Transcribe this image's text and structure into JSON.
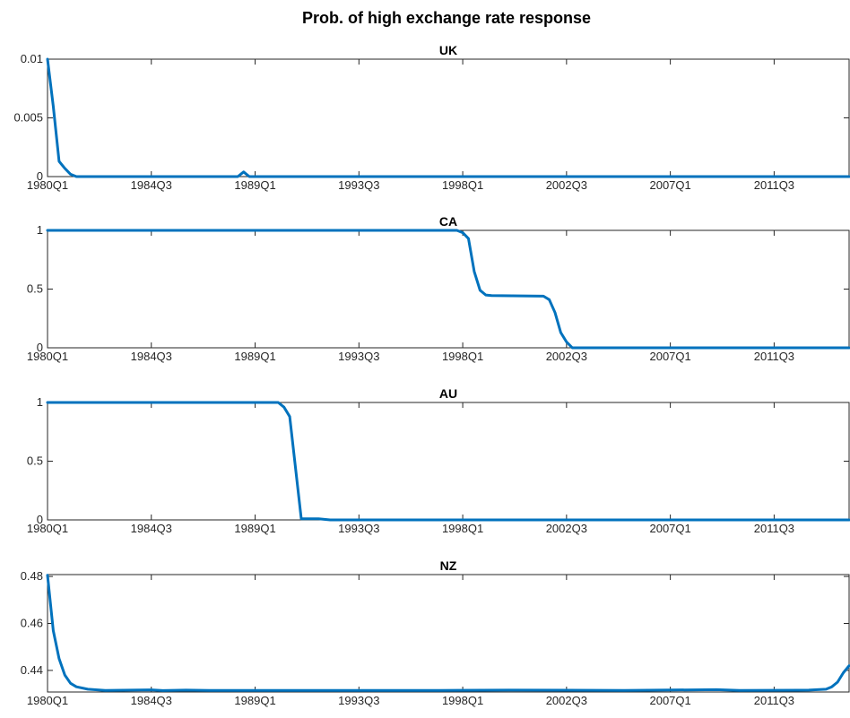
{
  "figure": {
    "title": "Prob. of high exchange rate response",
    "line_color": "#0072BD",
    "axis_color": "#262626"
  },
  "chart_data": [
    {
      "type": "line",
      "title": "UK",
      "xlabel": "",
      "ylabel": "",
      "x_ticks": [
        "1980Q1",
        "1984Q3",
        "1989Q1",
        "1993Q3",
        "1998Q1",
        "2002Q3",
        "2007Q1",
        "2011Q3"
      ],
      "x_range": [
        "1980Q1",
        "2014Q4"
      ],
      "ylim": [
        0,
        0.01
      ],
      "y_ticks": [
        0,
        0.005,
        0.01
      ],
      "y_tick_labels": [
        "0",
        "0.005",
        "0.01"
      ],
      "grid": false,
      "series": [
        {
          "values_by_quarter": [
            [
              "1980Q1",
              0.01
            ],
            [
              "1980Q2",
              0.006
            ],
            [
              "1980Q3",
              0.0013
            ],
            [
              "1980Q4",
              0.0007
            ],
            [
              "1981Q1",
              0.0002
            ],
            [
              "1981Q2",
              0.0
            ],
            [
              "1988Q2",
              0.0
            ],
            [
              "1988Q3",
              0.0004
            ],
            [
              "1988Q4",
              0.0
            ],
            [
              "2014Q4",
              0.0
            ]
          ]
        }
      ]
    },
    {
      "type": "line",
      "title": "CA",
      "xlabel": "",
      "ylabel": "",
      "x_ticks": [
        "1980Q1",
        "1984Q3",
        "1989Q1",
        "1993Q3",
        "1998Q1",
        "2002Q3",
        "2007Q1",
        "2011Q3"
      ],
      "x_range": [
        "1980Q1",
        "2014Q4"
      ],
      "ylim": [
        0,
        1
      ],
      "y_ticks": [
        0,
        0.5,
        1
      ],
      "y_tick_labels": [
        "0",
        "0.5",
        "1"
      ],
      "grid": false,
      "series": [
        {
          "values_by_quarter": [
            [
              "1980Q1",
              1.0
            ],
            [
              "1997Q4",
              1.0
            ],
            [
              "1998Q1",
              0.98
            ],
            [
              "1998Q2",
              0.93
            ],
            [
              "1998Q3",
              0.65
            ],
            [
              "1998Q4",
              0.49
            ],
            [
              "1999Q1",
              0.45
            ],
            [
              "1999Q2",
              0.445
            ],
            [
              "2001Q3",
              0.44
            ],
            [
              "2001Q4",
              0.41
            ],
            [
              "2002Q1",
              0.3
            ],
            [
              "2002Q2",
              0.13
            ],
            [
              "2002Q3",
              0.05
            ],
            [
              "2002Q4",
              0.0
            ],
            [
              "2014Q4",
              0.0
            ]
          ]
        }
      ]
    },
    {
      "type": "line",
      "title": "AU",
      "xlabel": "",
      "ylabel": "",
      "x_ticks": [
        "1980Q1",
        "1984Q3",
        "1989Q1",
        "1993Q3",
        "1998Q1",
        "2002Q3",
        "2007Q1",
        "2011Q3"
      ],
      "x_range": [
        "1980Q1",
        "2014Q4"
      ],
      "ylim": [
        0,
        1
      ],
      "y_ticks": [
        0,
        0.5,
        1
      ],
      "y_tick_labels": [
        "0",
        "0.5",
        "1"
      ],
      "grid": false,
      "series": [
        {
          "values_by_quarter": [
            [
              "1980Q1",
              1.0
            ],
            [
              "1990Q1",
              1.0
            ],
            [
              "1990Q2",
              0.96
            ],
            [
              "1990Q3",
              0.88
            ],
            [
              "1991Q1",
              0.01
            ],
            [
              "1991Q4",
              0.01
            ],
            [
              "1992Q2",
              0.0
            ],
            [
              "2014Q4",
              0.0
            ]
          ]
        }
      ]
    },
    {
      "type": "line",
      "title": "NZ",
      "xlabel": "",
      "ylabel": "",
      "x_ticks": [
        "1980Q1",
        "1984Q3",
        "1989Q1",
        "1993Q3",
        "1998Q1",
        "2002Q3",
        "2007Q1",
        "2011Q3"
      ],
      "x_range": [
        "1980Q1",
        "2014Q4"
      ],
      "ylim": [
        0.4308,
        0.4808
      ],
      "y_ticks": [
        0.44,
        0.46,
        0.48
      ],
      "y_tick_labels": [
        "0.44",
        "0.46",
        "0.48"
      ],
      "grid": false,
      "series": [
        {
          "values_by_quarter": [
            [
              "1980Q1",
              0.4805
            ],
            [
              "1980Q2",
              0.457
            ],
            [
              "1980Q3",
              0.445
            ],
            [
              "1980Q4",
              0.438
            ],
            [
              "1981Q1",
              0.4345
            ],
            [
              "1981Q2",
              0.433
            ],
            [
              "1981Q4",
              0.432
            ],
            [
              "1982Q3",
              0.4315
            ],
            [
              "1984Q3",
              0.4317
            ],
            [
              "1985Q1",
              0.4314
            ],
            [
              "1986Q1",
              0.4316
            ],
            [
              "1987Q1",
              0.4315
            ],
            [
              "1990Q1",
              0.4315
            ],
            [
              "1997Q1",
              0.4315
            ],
            [
              "2000Q1",
              0.4316
            ],
            [
              "2005Q1",
              0.4315
            ],
            [
              "2009Q1",
              0.4318
            ],
            [
              "2010Q1",
              0.4315
            ],
            [
              "2013Q1",
              0.4316
            ],
            [
              "2013Q4",
              0.432
            ],
            [
              "2014Q1",
              0.433
            ],
            [
              "2014Q2",
              0.435
            ],
            [
              "2014Q3",
              0.439
            ],
            [
              "2014Q4",
              0.442
            ]
          ]
        }
      ]
    }
  ]
}
